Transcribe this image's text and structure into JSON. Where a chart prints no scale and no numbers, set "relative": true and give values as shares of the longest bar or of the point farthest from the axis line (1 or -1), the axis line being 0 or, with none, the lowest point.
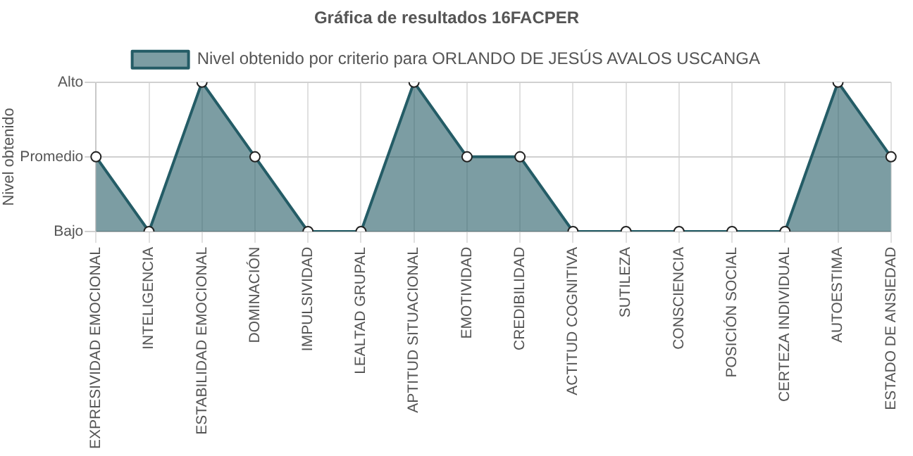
{
  "chart_data": {
    "type": "area",
    "title": "Gráfica de resultados 16FACPER",
    "ylabel": "Nivel obtenido",
    "relative": true,
    "categories": [
      "EXPRESIVIDAD EMOCIONAL",
      "INTELIGENCIA",
      "ESTABILIDAD EMOCIONAL",
      "DOMINACIÓN",
      "IMPULSIVIDAD",
      "LEALTAD GRUPAL",
      "APTITUD SITUACIONAL",
      "EMOTIVIDAD",
      "CREDIBILIDAD",
      "ACTITUD COGNITIVA",
      "SUTILEZA",
      "CONSCIENCIA",
      "POSICIÓN SOCIAL",
      "CERTEZA INDIVIDUAL",
      "AUTOESTIMA",
      "ESTADO DE ANSIEDAD"
    ],
    "y_categories": [
      "Alto",
      "Promedio",
      "Bajo"
    ],
    "series": [
      {
        "name": "Nivel obtenido por criterio para ORLANDO DE JESÚS AVALOS USCANGA",
        "color": "#245c66",
        "values": [
          0.5,
          0,
          1,
          0.5,
          0,
          0,
          1,
          0.5,
          0.5,
          0,
          0,
          0,
          0,
          0,
          1,
          0.5
        ]
      }
    ],
    "grid": true,
    "legend": "top",
    "marker": "circle",
    "line_style": "solid"
  }
}
